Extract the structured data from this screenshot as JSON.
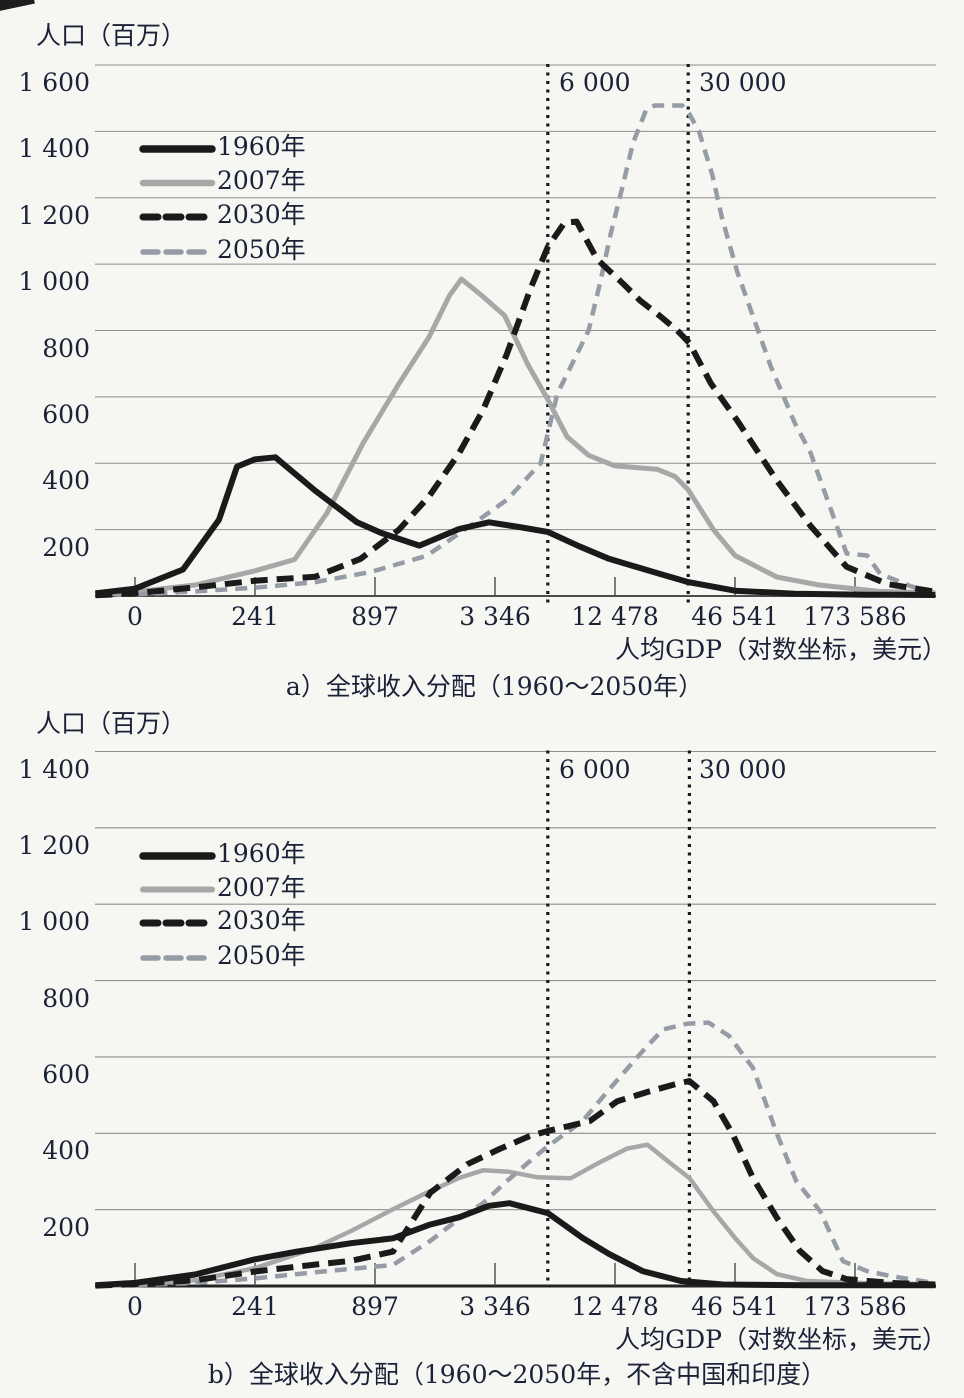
{
  "page": {
    "background": "#f6f6f3",
    "text_color": "#1b2238",
    "grid_color": "#8e8e8e",
    "axis_color": "#4d4d4d",
    "ref_line_color": "#17171f"
  },
  "chart_data": [
    {
      "panel_label": "a",
      "type": "line",
      "y_axis_title": "人口（百万）",
      "x_axis_label": "人均GDP（对数坐标，美元）",
      "caption": "a）全球收入分配（1960～2050年）",
      "x_scale": "log",
      "x_tick_labels": [
        "0",
        "241",
        "897",
        "3 346",
        "12 478",
        "46 541",
        "173 586"
      ],
      "y_tick_labels": [
        "1 600",
        "1 400",
        "1 200",
        "1 000",
        "800",
        "600",
        "400",
        "200"
      ],
      "y_tick_values": [
        1600,
        1400,
        1200,
        1000,
        800,
        600,
        400,
        200
      ],
      "ylim": [
        0,
        1600
      ],
      "grid": true,
      "legend_position": "upper-left-inside",
      "ref_lines": [
        {
          "label": "6 000",
          "value": 6000,
          "u": 3.44
        },
        {
          "label": "30 000",
          "value": 30000,
          "u": 4.61
        }
      ],
      "x_unit_note": "points are [x_tick_units, population_millions]; tick units 0..6 map to x_tick_labels on a log GDP axis",
      "series": [
        {
          "name": "1960年",
          "color": "#1a1a1a",
          "dash": null,
          "width": 6,
          "points": [
            [
              -0.33,
              8
            ],
            [
              0,
              22
            ],
            [
              0.4,
              80
            ],
            [
              0.7,
              230
            ],
            [
              0.85,
              390
            ],
            [
              1.0,
              412
            ],
            [
              1.17,
              418
            ],
            [
              1.5,
              318
            ],
            [
              1.85,
              222
            ],
            [
              2.05,
              190
            ],
            [
              2.37,
              152
            ],
            [
              2.7,
              202
            ],
            [
              2.95,
              222
            ],
            [
              3.2,
              208
            ],
            [
              3.44,
              193
            ],
            [
              3.7,
              150
            ],
            [
              3.95,
              112
            ],
            [
              4.37,
              67
            ],
            [
              4.61,
              42
            ],
            [
              5.0,
              16
            ],
            [
              5.5,
              7
            ],
            [
              6.1,
              4
            ],
            [
              6.67,
              3
            ]
          ]
        },
        {
          "name": "2007年",
          "color": "#a7a7a7",
          "dash": null,
          "width": 5,
          "points": [
            [
              -0.33,
              3
            ],
            [
              0,
              13
            ],
            [
              0.5,
              33
            ],
            [
              1.0,
              76
            ],
            [
              1.33,
              110
            ],
            [
              1.6,
              250
            ],
            [
              1.9,
              460
            ],
            [
              2.2,
              640
            ],
            [
              2.45,
              780
            ],
            [
              2.62,
              905
            ],
            [
              2.72,
              955
            ],
            [
              2.9,
              902
            ],
            [
              3.08,
              845
            ],
            [
              3.27,
              700
            ],
            [
              3.44,
              592
            ],
            [
              3.6,
              480
            ],
            [
              3.78,
              424
            ],
            [
              4.0,
              392
            ],
            [
              4.35,
              382
            ],
            [
              4.5,
              360
            ],
            [
              4.61,
              320
            ],
            [
              4.82,
              200
            ],
            [
              5.0,
              122
            ],
            [
              5.35,
              57
            ],
            [
              5.7,
              33
            ],
            [
              6.2,
              14
            ],
            [
              6.67,
              10
            ]
          ]
        },
        {
          "name": "2030年",
          "color": "#1a1a1a",
          "dash": [
            17,
            9
          ],
          "width": 6,
          "points": [
            [
              -0.33,
              2
            ],
            [
              0,
              8
            ],
            [
              0.5,
              26
            ],
            [
              1.0,
              46
            ],
            [
              1.5,
              58
            ],
            [
              1.88,
              112
            ],
            [
              2.2,
              200
            ],
            [
              2.45,
              300
            ],
            [
              2.7,
              430
            ],
            [
              2.9,
              560
            ],
            [
              3.1,
              730
            ],
            [
              3.3,
              930
            ],
            [
              3.44,
              1052
            ],
            [
              3.58,
              1125
            ],
            [
              3.68,
              1128
            ],
            [
              3.85,
              1015
            ],
            [
              4.07,
              940
            ],
            [
              4.21,
              890
            ],
            [
              4.37,
              845
            ],
            [
              4.52,
              800
            ],
            [
              4.62,
              762
            ],
            [
              4.8,
              640
            ],
            [
              5.02,
              528
            ],
            [
              5.35,
              347
            ],
            [
              5.63,
              211
            ],
            [
              5.93,
              88
            ],
            [
              6.27,
              36
            ],
            [
              6.67,
              13
            ]
          ]
        },
        {
          "name": "2050年",
          "color": "#969ca6",
          "dash": [
            12,
            8
          ],
          "width": 4.5,
          "points": [
            [
              -0.33,
              1
            ],
            [
              0,
              5
            ],
            [
              0.5,
              14
            ],
            [
              1.0,
              25
            ],
            [
              1.5,
              42
            ],
            [
              1.96,
              72
            ],
            [
              2.43,
              121
            ],
            [
              2.82,
              218
            ],
            [
              3.1,
              290
            ],
            [
              3.38,
              400
            ],
            [
              3.52,
              610
            ],
            [
              3.78,
              800
            ],
            [
              3.88,
              950
            ],
            [
              3.96,
              1085
            ],
            [
              4.06,
              1230
            ],
            [
              4.15,
              1365
            ],
            [
              4.26,
              1465
            ],
            [
              4.33,
              1478
            ],
            [
              4.56,
              1478
            ],
            [
              4.62,
              1452
            ],
            [
              4.7,
              1400
            ],
            [
              4.81,
              1270
            ],
            [
              4.89,
              1142
            ],
            [
              5.02,
              975
            ],
            [
              5.3,
              690
            ],
            [
              5.5,
              520
            ],
            [
              5.63,
              431
            ],
            [
              5.78,
              280
            ],
            [
              5.93,
              128
            ],
            [
              6.1,
              122
            ],
            [
              6.21,
              67
            ],
            [
              6.46,
              30
            ],
            [
              6.6,
              15
            ]
          ]
        }
      ]
    },
    {
      "panel_label": "b",
      "type": "line",
      "y_axis_title": "人口（百万）",
      "x_axis_label": "人均GDP（对数坐标，美元）",
      "caption": "b）全球收入分配（1960～2050年，不含中国和印度）",
      "x_scale": "log",
      "x_tick_labels": [
        "0",
        "241",
        "897",
        "3 346",
        "12 478",
        "46 541",
        "173 586"
      ],
      "y_tick_labels": [
        "1 400",
        "1 200",
        "1 000",
        "800",
        "600",
        "400",
        "200"
      ],
      "y_tick_values": [
        1400,
        1200,
        1000,
        800,
        600,
        400,
        200
      ],
      "ylim": [
        0,
        1400
      ],
      "grid": true,
      "legend_position": "upper-left-inside",
      "ref_lines": [
        {
          "label": "6 000",
          "value": 6000,
          "u": 3.44
        },
        {
          "label": "30 000",
          "value": 30000,
          "u": 4.62
        }
      ],
      "x_unit_note": "points are [x_tick_units, population_millions]; tick units 0..6 map to x_tick_labels on a log GDP axis",
      "series": [
        {
          "name": "1960年",
          "color": "#1a1a1a",
          "dash": null,
          "width": 6,
          "points": [
            [
              -0.33,
              2
            ],
            [
              0,
              8
            ],
            [
              0.5,
              30
            ],
            [
              1.0,
              70
            ],
            [
              1.35,
              90
            ],
            [
              1.8,
              112
            ],
            [
              2.15,
              125
            ],
            [
              2.45,
              160
            ],
            [
              2.7,
              180
            ],
            [
              2.95,
              210
            ],
            [
              3.12,
              217
            ],
            [
              3.44,
              191
            ],
            [
              3.73,
              126
            ],
            [
              3.95,
              84
            ],
            [
              4.23,
              39
            ],
            [
              4.55,
              13
            ],
            [
              4.9,
              4
            ],
            [
              5.6,
              2
            ],
            [
              6.67,
              2
            ]
          ]
        },
        {
          "name": "2007年",
          "color": "#a7a7a7",
          "dash": null,
          "width": 4.5,
          "points": [
            [
              -0.33,
              1
            ],
            [
              0,
              4
            ],
            [
              0.5,
              15
            ],
            [
              1.0,
              47
            ],
            [
              1.48,
              97
            ],
            [
              1.8,
              144
            ],
            [
              2.15,
              201
            ],
            [
              2.43,
              244
            ],
            [
              2.7,
              283
            ],
            [
              2.9,
              303
            ],
            [
              3.12,
              299
            ],
            [
              3.35,
              285
            ],
            [
              3.63,
              282
            ],
            [
              3.85,
              320
            ],
            [
              4.1,
              360
            ],
            [
              4.27,
              370
            ],
            [
              4.5,
              312
            ],
            [
              4.62,
              283
            ],
            [
              4.82,
              196
            ],
            [
              5.0,
              126
            ],
            [
              5.15,
              73
            ],
            [
              5.35,
              31
            ],
            [
              5.6,
              13
            ],
            [
              6.1,
              7
            ],
            [
              6.67,
              5
            ]
          ]
        },
        {
          "name": "2030年",
          "color": "#1a1a1a",
          "dash": [
            17,
            9
          ],
          "width": 6,
          "points": [
            [
              -0.33,
              1
            ],
            [
              0,
              5
            ],
            [
              0.5,
              15
            ],
            [
              1.0,
              38
            ],
            [
              1.5,
              56
            ],
            [
              1.8,
              66
            ],
            [
              2.15,
              90
            ],
            [
              2.46,
              244
            ],
            [
              2.77,
              319
            ],
            [
              3.04,
              359
            ],
            [
              3.29,
              393
            ],
            [
              3.44,
              406
            ],
            [
              3.79,
              432
            ],
            [
              4.02,
              484
            ],
            [
              4.29,
              510
            ],
            [
              4.51,
              529
            ],
            [
              4.62,
              537
            ],
            [
              4.82,
              484
            ],
            [
              4.98,
              398
            ],
            [
              5.15,
              283
            ],
            [
              5.35,
              178
            ],
            [
              5.54,
              92
            ],
            [
              5.73,
              39
            ],
            [
              5.93,
              18
            ],
            [
              6.3,
              8
            ],
            [
              6.67,
              4
            ]
          ]
        },
        {
          "name": "2050年",
          "color": "#969ca6",
          "dash": [
            12,
            8
          ],
          "width": 4.5,
          "points": [
            [
              -0.33,
              1
            ],
            [
              0,
              2
            ],
            [
              0.5,
              8
            ],
            [
              1.0,
              20
            ],
            [
              1.5,
              36
            ],
            [
              1.9,
              48
            ],
            [
              2.15,
              55
            ],
            [
              2.46,
              118
            ],
            [
              2.71,
              178
            ],
            [
              2.9,
              217
            ],
            [
              3.1,
              275
            ],
            [
              3.32,
              335
            ],
            [
              3.44,
              366
            ],
            [
              3.73,
              432
            ],
            [
              3.96,
              518
            ],
            [
              4.23,
              615
            ],
            [
              4.4,
              672
            ],
            [
              4.6,
              687
            ],
            [
              4.78,
              690
            ],
            [
              4.95,
              655
            ],
            [
              5.15,
              571
            ],
            [
              5.35,
              398
            ],
            [
              5.51,
              275
            ],
            [
              5.71,
              196
            ],
            [
              5.9,
              65
            ],
            [
              6.1,
              39
            ],
            [
              6.3,
              26
            ],
            [
              6.62,
              10
            ]
          ]
        }
      ]
    }
  ]
}
